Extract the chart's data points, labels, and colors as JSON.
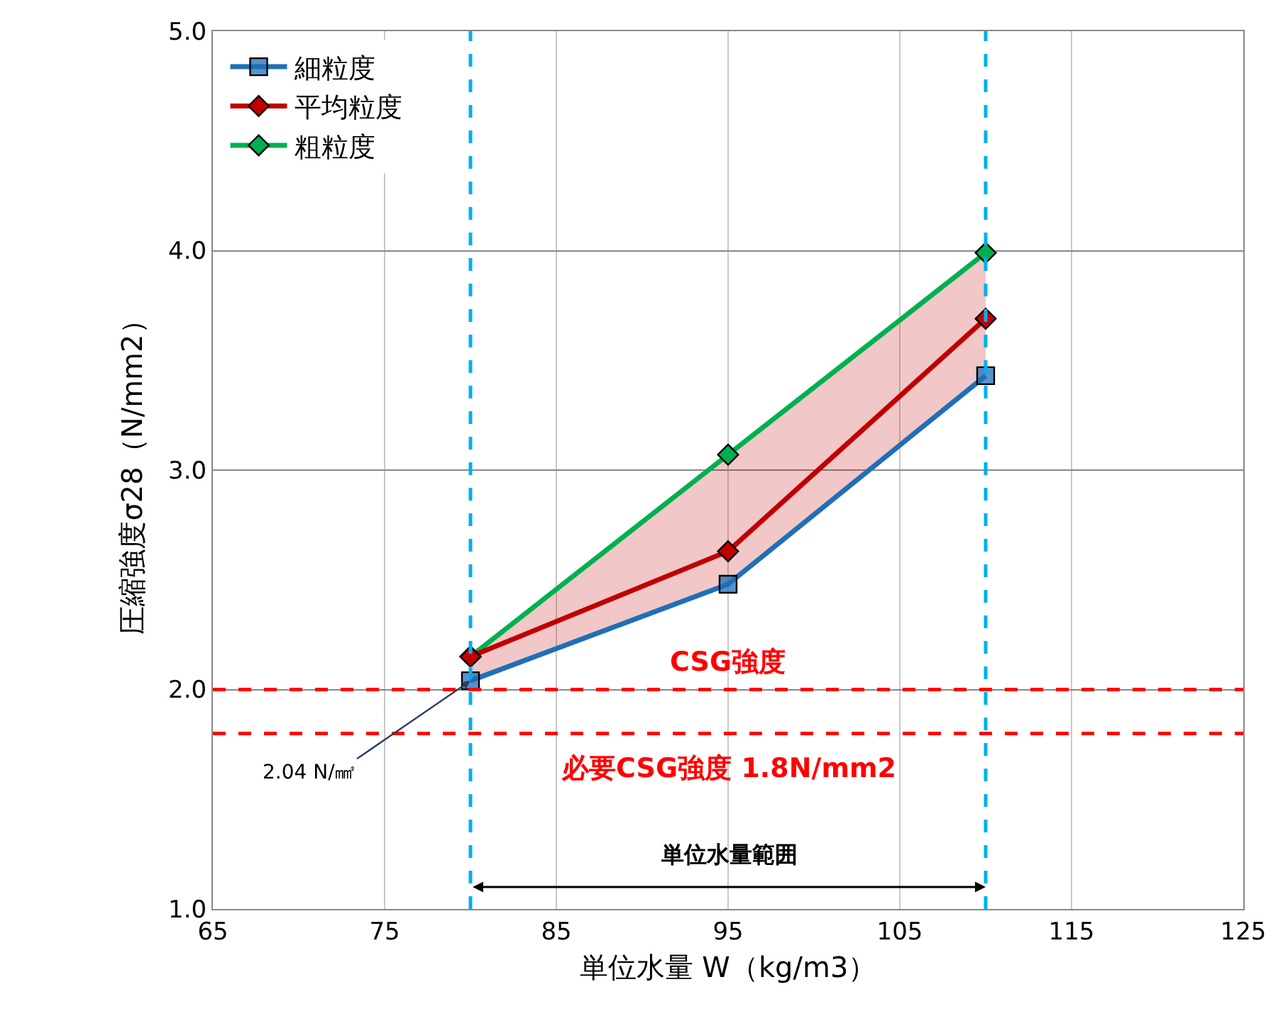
{
  "chart_data": {
    "type": "line",
    "xlabel": "単位水量 W（kg/m3）",
    "ylabel": "圧縮強度σ28（N/mm2）",
    "x": [
      80,
      95,
      110
    ],
    "series": [
      {
        "name": "細粒度",
        "color": "#1f6fb8",
        "marker": "square",
        "values": [
          2.04,
          2.48,
          3.43
        ]
      },
      {
        "name": "平均粒度",
        "color": "#c00000",
        "marker": "diamond",
        "values": [
          2.15,
          2.63,
          3.69
        ],
        "lower": [
          2.04,
          2.48,
          3.43
        ],
        "upper": [
          2.15,
          3.07,
          3.99
        ]
      },
      {
        "name": "粗粒度",
        "color": "#00b050",
        "marker": "diamond",
        "values": [
          2.15,
          3.07,
          3.99
        ]
      }
    ],
    "xlim": [
      65,
      125
    ],
    "xticks": [
      65,
      75,
      85,
      95,
      105,
      115,
      125
    ],
    "ylim": [
      1.0,
      5.0
    ],
    "yticks": [
      {
        "value": 1.0,
        "label": "1.0"
      },
      {
        "value": 2.0,
        "label": "2.0"
      },
      {
        "value": 3.0,
        "label": "3.0"
      },
      {
        "value": 4.0,
        "label": "4.0"
      },
      {
        "value": 5.0,
        "label": "5.0"
      }
    ],
    "grid": true,
    "legend": "top left",
    "ref_lines": [
      {
        "axis": "y",
        "value": 2.0,
        "label": "CSG強度",
        "color": "#ff0000",
        "line_style": "dashed"
      },
      {
        "axis": "y",
        "value": 1.8,
        "label": "必要CSG強度 1.8N/mm2",
        "color": "#ff0000",
        "line_style": "dashed"
      },
      {
        "axis": "x",
        "value": 80,
        "color": "#00b0f0",
        "line_style": "dashed"
      },
      {
        "axis": "x",
        "value": 110,
        "color": "#00b0f0",
        "line_style": "dashed"
      }
    ],
    "annotations": [
      {
        "text": "2.04 N/㎟",
        "x": 80,
        "y": 2.04
      },
      "単位水量範囲"
    ]
  }
}
